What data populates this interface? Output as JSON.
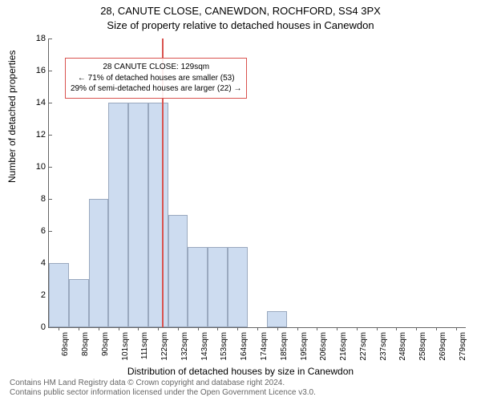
{
  "title_main": "28, CANUTE CLOSE, CANEWDON, ROCHFORD, SS4 3PX",
  "title_sub": "Size of property relative to detached houses in Canewdon",
  "y_label": "Number of detached properties",
  "x_label": "Distribution of detached houses by size in Canewdon",
  "footer_line1": "Contains HM Land Registry data © Crown copyright and database right 2024.",
  "footer_line2": "Contains public sector information licensed under the Open Government Licence v3.0.",
  "chart": {
    "type": "histogram",
    "background_color": "#ffffff",
    "bar_fill": "#cddcf0",
    "bar_border": "#9aa9bf",
    "axis_color": "#666666",
    "ref_line_color": "#d9534f",
    "annotation_border": "#d9534f",
    "ylim": [
      0,
      18
    ],
    "ytick_step": 2,
    "x_categories": [
      "69sqm",
      "80sqm",
      "90sqm",
      "101sqm",
      "111sqm",
      "122sqm",
      "132sqm",
      "143sqm",
      "153sqm",
      "164sqm",
      "174sqm",
      "185sqm",
      "195sqm",
      "206sqm",
      "216sqm",
      "227sqm",
      "237sqm",
      "248sqm",
      "258sqm",
      "269sqm",
      "279sqm"
    ],
    "values": [
      4,
      3,
      8,
      14,
      14,
      14,
      7,
      5,
      5,
      5,
      0,
      1,
      0,
      0,
      0,
      0,
      0,
      0,
      0,
      0,
      0
    ],
    "ref_line_index": 5.7,
    "annotation": {
      "line1": "28 CANUTE CLOSE: 129sqm",
      "line2": "← 71% of detached houses are smaller (53)",
      "line3": "29% of semi-detached houses are larger (22) →"
    }
  }
}
